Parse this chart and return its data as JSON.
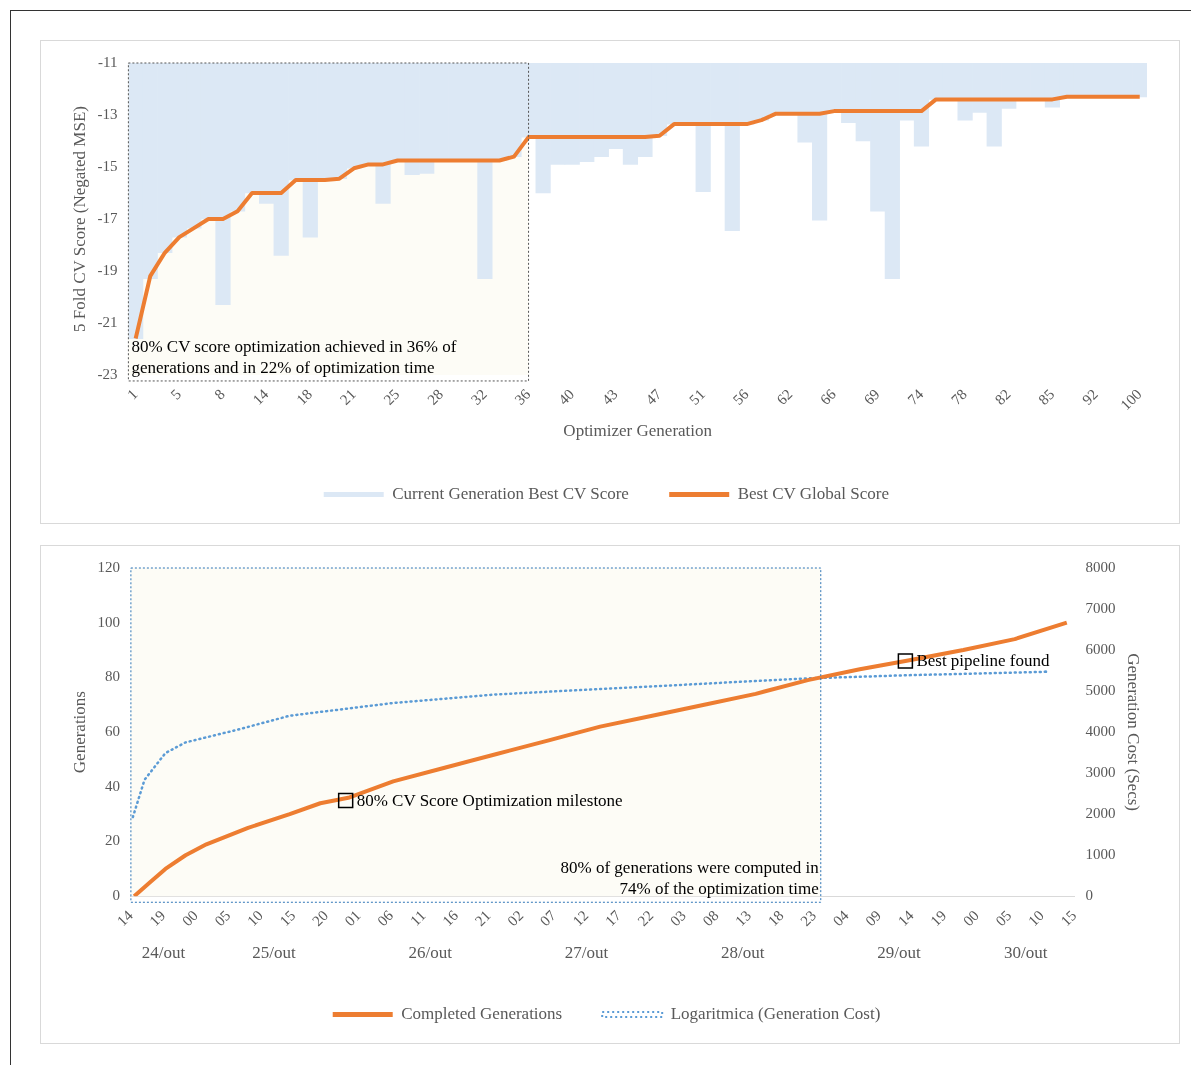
{
  "chart_data": [
    {
      "type": "bar",
      "xlabel": "Optimizer Generation",
      "ylabel": "5 Fold CV Score (Negated MSE)",
      "categories": [
        "1",
        null,
        null,
        "5",
        null,
        null,
        "8",
        null,
        null,
        "14",
        null,
        null,
        "18",
        null,
        null,
        "21",
        null,
        null,
        "25",
        null,
        null,
        "28",
        null,
        null,
        "32",
        null,
        null,
        "36",
        null,
        null,
        "40",
        null,
        null,
        "43",
        null,
        null,
        "47",
        null,
        null,
        "51",
        null,
        null,
        "56",
        null,
        null,
        "62",
        null,
        null,
        "66",
        null,
        null,
        "69",
        null,
        null,
        "74",
        null,
        null,
        "78",
        null,
        null,
        "82",
        null,
        null,
        "85",
        null,
        null,
        "92",
        null,
        null,
        "100"
      ],
      "series": [
        {
          "name": "Current Generation Best CV Score",
          "color": "#dce8f5",
          "values": [
            -21.6,
            -19.3,
            -18.3,
            -17.7,
            -17.35,
            -17.0,
            -20.3,
            -16.7,
            -16.0,
            -16.4,
            -18.4,
            -15.5,
            -17.7,
            -15.5,
            -15.45,
            -15.05,
            -14.9,
            -16.4,
            -14.75,
            -15.3,
            -15.25,
            -14.75,
            -14.75,
            -14.75,
            -19.3,
            -14.75,
            -14.6,
            -13.85,
            -16.0,
            -14.9,
            -14.9,
            -14.8,
            -14.6,
            -14.3,
            -14.9,
            -14.6,
            -13.8,
            -13.35,
            -13.35,
            -15.95,
            -13.35,
            -17.45,
            -13.35,
            -13.2,
            -12.95,
            -12.95,
            -14.05,
            -17.05,
            -12.85,
            -13.3,
            -14.0,
            -16.7,
            -19.3,
            -13.2,
            -14.2,
            -12.4,
            -12.4,
            -13.2,
            -12.9,
            -14.2,
            -12.75,
            -12.4,
            -12.4,
            -12.7,
            -12.3,
            -12.3,
            -12.3,
            -12.3,
            -12.3,
            -12.3
          ]
        },
        {
          "name": "Best CV Global Score",
          "type": "line",
          "color": "#ed7d31",
          "values": [
            -21.6,
            -19.2,
            -18.3,
            -17.7,
            -17.35,
            -17.0,
            -17.0,
            -16.7,
            -16.0,
            -16.0,
            -16.0,
            -15.5,
            -15.5,
            -15.5,
            -15.45,
            -15.05,
            -14.9,
            -14.9,
            -14.75,
            -14.75,
            -14.75,
            -14.75,
            -14.75,
            -14.75,
            -14.75,
            -14.75,
            -14.6,
            -13.85,
            -13.85,
            -13.85,
            -13.85,
            -13.85,
            -13.85,
            -13.85,
            -13.85,
            -13.85,
            -13.8,
            -13.35,
            -13.35,
            -13.35,
            -13.35,
            -13.35,
            -13.35,
            -13.2,
            -12.95,
            -12.95,
            -12.95,
            -12.95,
            -12.85,
            -12.85,
            -12.85,
            -12.85,
            -12.85,
            -12.85,
            -12.85,
            -12.4,
            -12.4,
            -12.4,
            -12.4,
            -12.4,
            -12.4,
            -12.4,
            -12.4,
            -12.4,
            -12.3,
            -12.3,
            -12.3,
            -12.3,
            -12.3,
            -12.3
          ]
        }
      ],
      "ylim": [
        -23,
        -11
      ],
      "yticks": [
        -23,
        -21,
        -19,
        -17,
        -15,
        -13,
        -11
      ],
      "bands": [
        {
          "axis": "x",
          "from": "1",
          "to": "36",
          "color": "#fdfcf6",
          "label": "80% CV score optimization achieved in 36% of generations and in 22% of optimization time"
        }
      ],
      "legend": "bottom"
    },
    {
      "type": "line",
      "ylabel": "Generations",
      "y2label": "Generation Cost (Secs)",
      "series": [
        {
          "name": "Completed Generations",
          "color": "#ed7d31",
          "x": [
            14.5,
            16.9,
            19.3,
            22.4,
            25.6,
            32,
            38.4,
            43.1,
            47.4,
            54.3,
            62.2,
            70.2,
            78.2,
            86.1,
            94.1,
            102.1,
            110,
            118,
            126,
            133,
            141.9,
            149.8,
            157.8
          ],
          "values": [
            0,
            5,
            10,
            15,
            19,
            25,
            30,
            34,
            36,
            42,
            47,
            52,
            57,
            62,
            66,
            70,
            74,
            79,
            83,
            86,
            90,
            94,
            100
          ]
        },
        {
          "name": "Logaritmica (Generation Cost)",
          "color": "#5b9bd5",
          "axis": "y2",
          "line_style": "dotted",
          "x": [
            14.3,
            16.1,
            19.3,
            22.4,
            30.4,
            38.4,
            54.3,
            70.2,
            86.1,
            102,
            118,
            133.9,
            154.6
          ],
          "values": [
            1930,
            2840,
            3490,
            3750,
            4060,
            4400,
            4710,
            4920,
            5050,
            5180,
            5310,
            5390,
            5470
          ]
        }
      ],
      "xlim": [
        14,
        159
      ],
      "xticks": [
        {
          "value": 14,
          "label": "14"
        },
        {
          "value": 19,
          "label": "19"
        },
        {
          "value": 24,
          "label": "00"
        },
        {
          "value": 29,
          "label": "05"
        },
        {
          "value": 34,
          "label": "10"
        },
        {
          "value": 39,
          "label": "15"
        },
        {
          "value": 44,
          "label": "20"
        },
        {
          "value": 49,
          "label": "01"
        },
        {
          "value": 54,
          "label": "06"
        },
        {
          "value": 59,
          "label": "11"
        },
        {
          "value": 64,
          "label": "16"
        },
        {
          "value": 69,
          "label": "21"
        },
        {
          "value": 74,
          "label": "02"
        },
        {
          "value": 79,
          "label": "07"
        },
        {
          "value": 84,
          "label": "12"
        },
        {
          "value": 89,
          "label": "17"
        },
        {
          "value": 94,
          "label": "22"
        },
        {
          "value": 99,
          "label": "03"
        },
        {
          "value": 104,
          "label": "08"
        },
        {
          "value": 109,
          "label": "13"
        },
        {
          "value": 114,
          "label": "18"
        },
        {
          "value": 119,
          "label": "23"
        },
        {
          "value": 124,
          "label": "04"
        },
        {
          "value": 129,
          "label": "09"
        },
        {
          "value": 134,
          "label": "14"
        },
        {
          "value": 139,
          "label": "19"
        },
        {
          "value": 144,
          "label": "00"
        },
        {
          "value": 149,
          "label": "05"
        },
        {
          "value": 154,
          "label": "10"
        },
        {
          "value": 159,
          "label": "15"
        }
      ],
      "x2lim": [
        "--10-24T14:00",
        "--10-30T15:00"
      ],
      "x2ticks": [
        {
          "value": "--10-24T19:00",
          "label": "24/out"
        },
        {
          "value": "--10-25T12:00",
          "label": "25/out"
        },
        {
          "value": "--10-26T12:00",
          "label": "26/out"
        },
        {
          "value": "--10-27T12:00",
          "label": "27/out"
        },
        {
          "value": "--10-28T12:00",
          "label": "28/out"
        },
        {
          "value": "--10-29T12:00",
          "label": "29/out"
        },
        {
          "value": "--10-30T07:30",
          "label": "30/out"
        }
      ],
      "ylim": [
        0,
        120
      ],
      "yticks": [
        0,
        20,
        40,
        60,
        80,
        100,
        120
      ],
      "y2lim": [
        0,
        8000
      ],
      "y2ticks": [
        0,
        1000,
        2000,
        3000,
        4000,
        5000,
        6000,
        7000,
        8000
      ],
      "bands": [
        {
          "axis": "x",
          "from": 14,
          "to": 120,
          "color": "#fdfcf6",
          "label": "80% of generations were computed in 74% of the optimization time"
        }
      ],
      "annotations": [
        {
          "text": "80% CV Score Optimization milestone",
          "x": 47,
          "y": 35
        },
        {
          "text": "Best pipeline found",
          "x": 133,
          "y": 86
        }
      ],
      "legend": "bottom"
    }
  ]
}
